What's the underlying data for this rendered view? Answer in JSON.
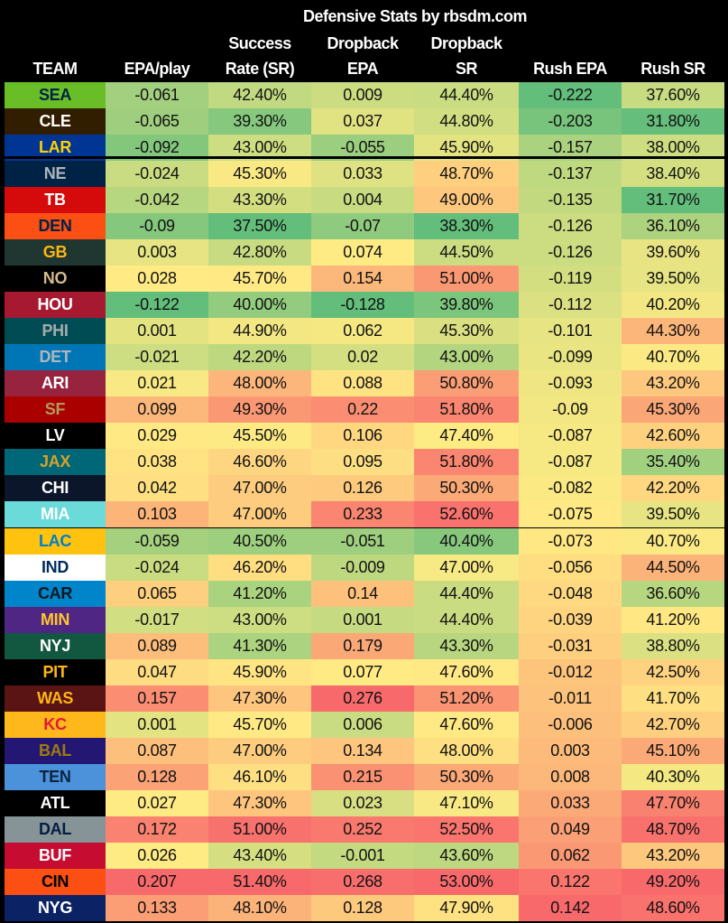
{
  "chart_data": {
    "type": "heatmap",
    "title": "Defensive Stats by rbsdm.com",
    "columns": [
      {
        "key": "team",
        "label_lines": [
          "TEAM"
        ]
      },
      {
        "key": "epa_play",
        "label_lines": [
          "EPA/play"
        ]
      },
      {
        "key": "sr",
        "label_lines": [
          "Success",
          "Rate (SR)"
        ]
      },
      {
        "key": "db_epa",
        "label_lines": [
          "Dropback",
          "EPA"
        ]
      },
      {
        "key": "db_sr",
        "label_lines": [
          "Dropback",
          "SR"
        ]
      },
      {
        "key": "rush_epa",
        "label_lines": [
          "Rush EPA"
        ]
      },
      {
        "key": "rush_sr",
        "label_lines": [
          "Rush SR"
        ]
      }
    ],
    "color_scale": {
      "low": "#63BE7B",
      "mid": "#FFEB84",
      "high": "#F8696B"
    },
    "highlighted_team": "NE",
    "rows": [
      {
        "team": "SEA",
        "bg": "#69BE28",
        "fg": "#002244",
        "values": [
          "-0.061",
          "42.40%",
          "0.009",
          "44.40%",
          "-0.222",
          "37.60%"
        ]
      },
      {
        "team": "CLE",
        "bg": "#311D00",
        "fg": "#FFFFFF",
        "values": [
          "-0.065",
          "39.30%",
          "0.037",
          "44.80%",
          "-0.203",
          "31.80%"
        ]
      },
      {
        "team": "LAR",
        "bg": "#003594",
        "fg": "#FFD100",
        "values": [
          "-0.092",
          "43.00%",
          "-0.055",
          "45.90%",
          "-0.157",
          "38.00%"
        ]
      },
      {
        "team": "NE",
        "bg": "#002244",
        "fg": "#B0B7BC",
        "values": [
          "-0.024",
          "45.30%",
          "0.033",
          "48.70%",
          "-0.137",
          "38.40%"
        ]
      },
      {
        "team": "TB",
        "bg": "#D50A0A",
        "fg": "#FFFFFF",
        "values": [
          "-0.042",
          "43.30%",
          "0.004",
          "49.00%",
          "-0.135",
          "31.70%"
        ]
      },
      {
        "team": "DEN",
        "bg": "#FB4F14",
        "fg": "#002244",
        "values": [
          "-0.09",
          "37.50%",
          "-0.07",
          "38.30%",
          "-0.126",
          "36.10%"
        ]
      },
      {
        "team": "GB",
        "bg": "#203731",
        "fg": "#FFB612",
        "values": [
          "0.003",
          "42.80%",
          "0.074",
          "44.50%",
          "-0.126",
          "39.60%"
        ]
      },
      {
        "team": "NO",
        "bg": "#000000",
        "fg": "#D3BC8D",
        "values": [
          "0.028",
          "45.70%",
          "0.154",
          "51.00%",
          "-0.119",
          "39.50%"
        ]
      },
      {
        "team": "HOU",
        "bg": "#A71930",
        "fg": "#FFFFFF",
        "values": [
          "-0.122",
          "40.00%",
          "-0.128",
          "39.80%",
          "-0.112",
          "40.20%"
        ]
      },
      {
        "team": "PHI",
        "bg": "#004C54",
        "fg": "#A5ACAF",
        "values": [
          "0.001",
          "44.90%",
          "0.062",
          "45.30%",
          "-0.101",
          "44.30%"
        ]
      },
      {
        "team": "DET",
        "bg": "#0076B6",
        "fg": "#B0B7BC",
        "values": [
          "-0.021",
          "42.20%",
          "0.02",
          "43.00%",
          "-0.099",
          "40.70%"
        ]
      },
      {
        "team": "ARI",
        "bg": "#97233F",
        "fg": "#FFFFFF",
        "values": [
          "0.021",
          "48.00%",
          "0.088",
          "50.80%",
          "-0.093",
          "43.20%"
        ]
      },
      {
        "team": "SF",
        "bg": "#AA0000",
        "fg": "#B3995D",
        "values": [
          "0.099",
          "49.30%",
          "0.22",
          "51.80%",
          "-0.09",
          "45.30%"
        ]
      },
      {
        "team": "LV",
        "bg": "#000000",
        "fg": "#FFFFFF",
        "values": [
          "0.029",
          "45.50%",
          "0.106",
          "47.40%",
          "-0.087",
          "42.60%"
        ]
      },
      {
        "team": "JAX",
        "bg": "#006778",
        "fg": "#D7A22A",
        "values": [
          "0.038",
          "46.60%",
          "0.095",
          "51.80%",
          "-0.087",
          "35.40%"
        ]
      },
      {
        "team": "CHI",
        "bg": "#0B162A",
        "fg": "#FFFFFF",
        "values": [
          "0.042",
          "47.00%",
          "0.126",
          "50.30%",
          "-0.082",
          "42.20%"
        ]
      },
      {
        "team": "MIA",
        "bg": "#6ADBD9",
        "fg": "#FFFFFF",
        "values": [
          "0.103",
          "47.00%",
          "0.233",
          "52.60%",
          "-0.075",
          "39.50%"
        ]
      },
      {
        "team": "LAC",
        "bg": "#FFC20E",
        "fg": "#0080C6",
        "values": [
          "-0.059",
          "40.50%",
          "-0.051",
          "40.40%",
          "-0.073",
          "40.70%"
        ]
      },
      {
        "team": "IND",
        "bg": "#FFFFFF",
        "fg": "#002C5F",
        "values": [
          "-0.024",
          "46.20%",
          "-0.009",
          "47.00%",
          "-0.056",
          "44.50%"
        ]
      },
      {
        "team": "CAR",
        "bg": "#0085CA",
        "fg": "#101820",
        "values": [
          "0.065",
          "41.20%",
          "0.14",
          "44.40%",
          "-0.048",
          "36.60%"
        ]
      },
      {
        "team": "MIN",
        "bg": "#4F2683",
        "fg": "#FFC62F",
        "values": [
          "-0.017",
          "43.00%",
          "0.001",
          "44.40%",
          "-0.039",
          "41.20%"
        ]
      },
      {
        "team": "NYJ",
        "bg": "#125740",
        "fg": "#FFFFFF",
        "values": [
          "0.089",
          "41.30%",
          "0.179",
          "43.30%",
          "-0.031",
          "38.80%"
        ]
      },
      {
        "team": "PIT",
        "bg": "#000000",
        "fg": "#FFB612",
        "values": [
          "0.047",
          "45.90%",
          "0.077",
          "47.60%",
          "-0.012",
          "42.50%"
        ]
      },
      {
        "team": "WAS",
        "bg": "#5A1414",
        "fg": "#FFB612",
        "values": [
          "0.157",
          "47.30%",
          "0.276",
          "51.20%",
          "-0.011",
          "41.70%"
        ]
      },
      {
        "team": "KC",
        "bg": "#FFB81C",
        "fg": "#E31837",
        "values": [
          "0.001",
          "45.70%",
          "0.006",
          "47.60%",
          "-0.006",
          "42.70%"
        ]
      },
      {
        "team": "BAL",
        "bg": "#241773",
        "fg": "#9E7C0C",
        "values": [
          "0.087",
          "47.00%",
          "0.134",
          "48.00%",
          "0.003",
          "45.10%"
        ]
      },
      {
        "team": "TEN",
        "bg": "#4B92DB",
        "fg": "#0C2340",
        "values": [
          "0.128",
          "46.10%",
          "0.215",
          "50.30%",
          "0.008",
          "40.30%"
        ]
      },
      {
        "team": "ATL",
        "bg": "#000000",
        "fg": "#FFFFFF",
        "values": [
          "0.027",
          "47.30%",
          "0.023",
          "47.10%",
          "0.033",
          "47.70%"
        ]
      },
      {
        "team": "DAL",
        "bg": "#869397",
        "fg": "#041E42",
        "values": [
          "0.172",
          "51.00%",
          "0.252",
          "52.50%",
          "0.049",
          "48.70%"
        ]
      },
      {
        "team": "BUF",
        "bg": "#C60C30",
        "fg": "#FFFFFF",
        "values": [
          "0.026",
          "43.40%",
          "-0.001",
          "43.60%",
          "0.062",
          "43.20%"
        ]
      },
      {
        "team": "CIN",
        "bg": "#FB4F14",
        "fg": "#000000",
        "values": [
          "0.207",
          "51.40%",
          "0.268",
          "53.00%",
          "0.122",
          "49.20%"
        ]
      },
      {
        "team": "NYG",
        "bg": "#0B2265",
        "fg": "#FFFFFF",
        "values": [
          "0.133",
          "48.10%",
          "0.128",
          "47.90%",
          "0.142",
          "48.60%"
        ]
      }
    ]
  }
}
